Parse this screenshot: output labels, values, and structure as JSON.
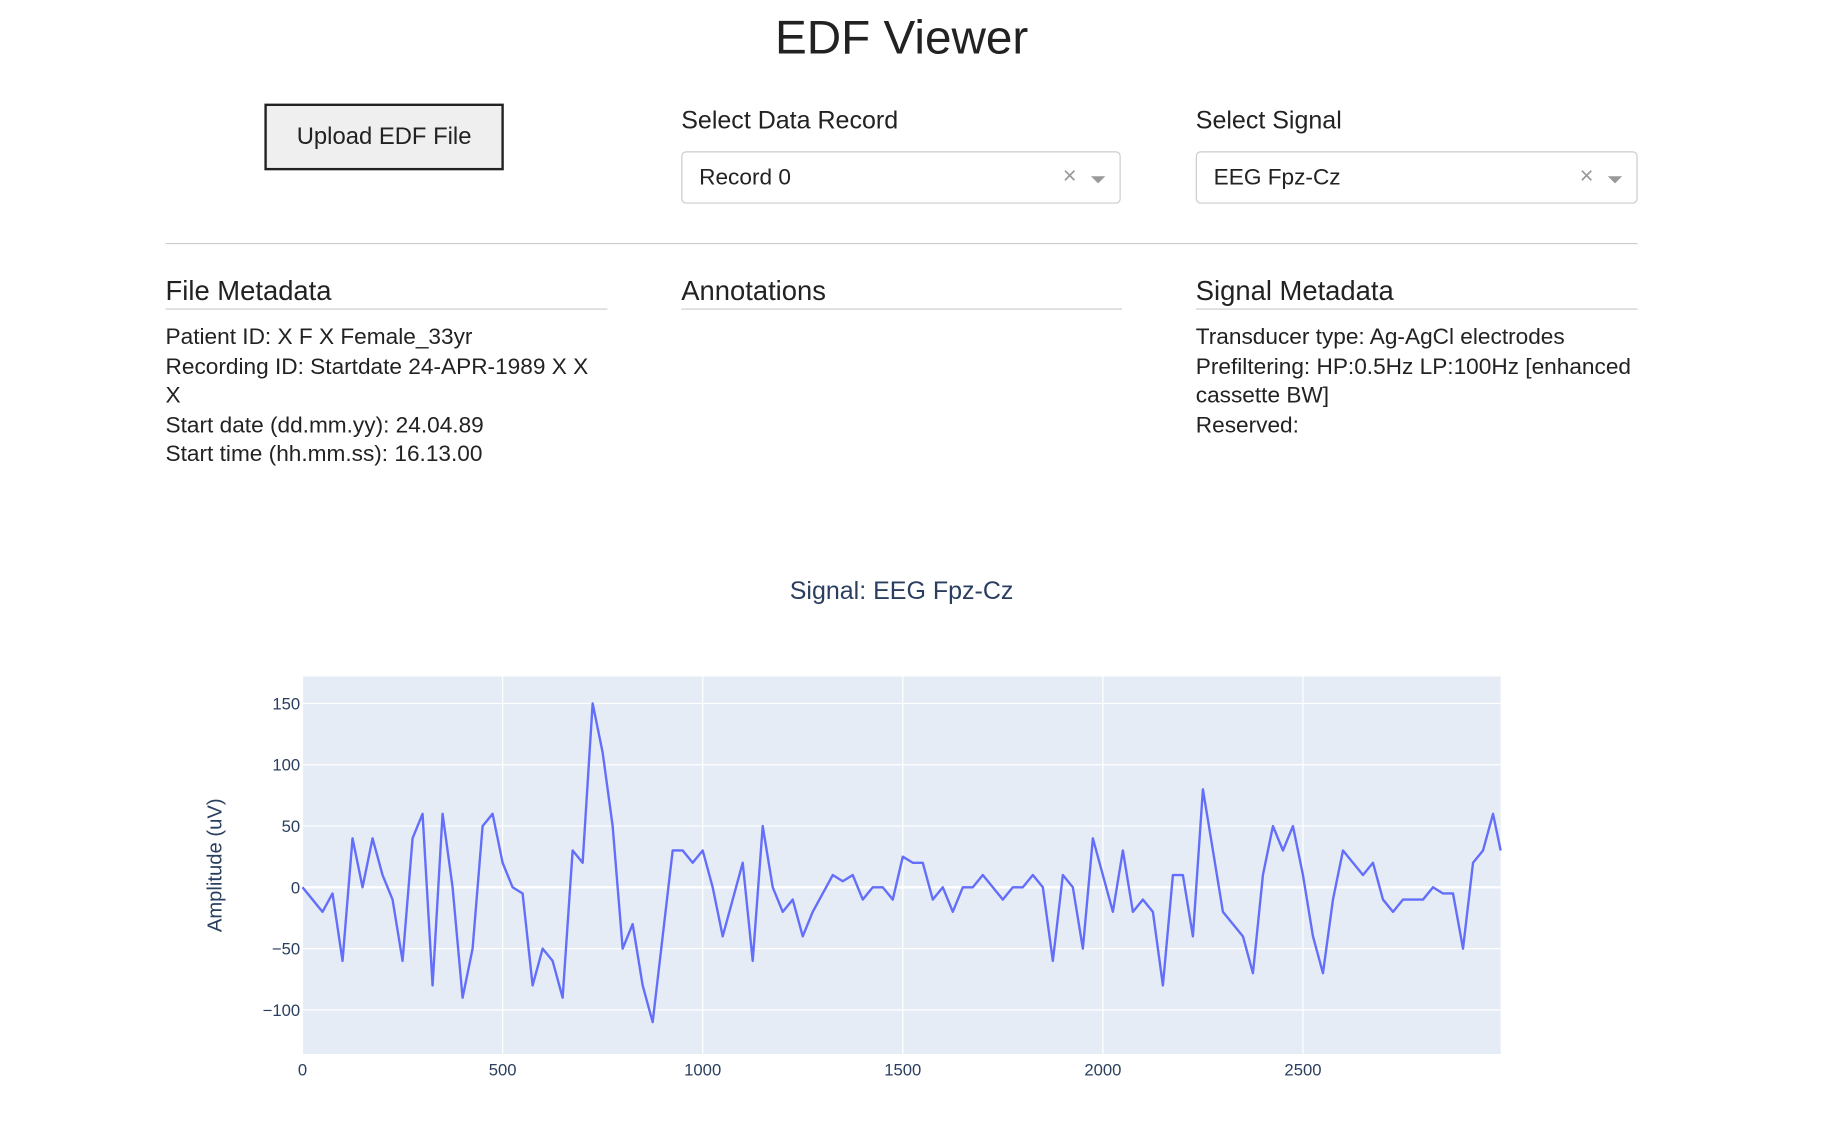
{
  "title": "EDF Viewer",
  "upload_button": "Upload EDF File",
  "record_select": {
    "label": "Select Data Record",
    "value": "Record 0"
  },
  "signal_select": {
    "label": "Select Signal",
    "value": "EEG Fpz-Cz"
  },
  "file_metadata": {
    "title": "File Metadata",
    "lines": [
      "Patient ID: X F X Female_33yr",
      "Recording ID: Startdate 24-APR-1989 X X X",
      "Start date (dd.mm.yy): 24.04.89",
      "Start time (hh.mm.ss): 16.13.00"
    ]
  },
  "annotations": {
    "title": "Annotations"
  },
  "signal_metadata": {
    "title": "Signal Metadata",
    "lines": [
      "Transducer type: Ag-AgCl electrodes",
      "Prefiltering: HP:0.5Hz LP:100Hz [enhanced cassette BW]",
      "Reserved:"
    ]
  },
  "chart_data": {
    "type": "line",
    "title": "Signal: EEG Fpz-Cz",
    "y_label": "Amplitude (uV)",
    "xlim": [
      0,
      2994
    ],
    "ylim": [
      -136,
      172
    ],
    "xticks": [
      0,
      500,
      1000,
      1500,
      2000,
      2500
    ],
    "yticks": [
      {
        "value": -100,
        "label": "−100"
      },
      {
        "value": -50,
        "label": "−50"
      },
      0,
      50,
      100,
      150
    ],
    "grid": true,
    "x": [
      0,
      25,
      50,
      75,
      100,
      125,
      150,
      175,
      200,
      225,
      250,
      275,
      300,
      325,
      350,
      375,
      400,
      425,
      450,
      475,
      500,
      525,
      550,
      575,
      600,
      625,
      650,
      675,
      700,
      725,
      750,
      775,
      800,
      825,
      850,
      875,
      900,
      925,
      950,
      975,
      1000,
      1025,
      1050,
      1075,
      1100,
      1125,
      1150,
      1175,
      1200,
      1225,
      1250,
      1275,
      1300,
      1325,
      1350,
      1375,
      1400,
      1425,
      1450,
      1475,
      1500,
      1525,
      1550,
      1575,
      1600,
      1625,
      1650,
      1675,
      1700,
      1725,
      1750,
      1775,
      1800,
      1825,
      1850,
      1875,
      1900,
      1925,
      1950,
      1975,
      2000,
      2025,
      2050,
      2075,
      2100,
      2125,
      2150,
      2175,
      2200,
      2225,
      2250,
      2275,
      2300,
      2325,
      2350,
      2375,
      2400,
      2425,
      2450,
      2475,
      2500,
      2525,
      2550,
      2575,
      2600,
      2625,
      2650,
      2675,
      2700,
      2725,
      2750,
      2775,
      2800,
      2825,
      2850,
      2875,
      2900,
      2925,
      2950,
      2975,
      2994
    ],
    "series": [
      {
        "color": "#636efa",
        "values": [
          0,
          -10,
          -20,
          -5,
          -60,
          40,
          0,
          40,
          10,
          -10,
          -60,
          40,
          60,
          -80,
          60,
          0,
          -90,
          -50,
          50,
          60,
          20,
          0,
          -5,
          -80,
          -50,
          -60,
          -90,
          30,
          20,
          150,
          110,
          50,
          -50,
          -30,
          -80,
          -110,
          -40,
          30,
          30,
          20,
          30,
          0,
          -40,
          -10,
          20,
          -60,
          50,
          0,
          -20,
          -10,
          -40,
          -20,
          -5,
          10,
          5,
          10,
          -10,
          0,
          0,
          -10,
          25,
          20,
          20,
          -10,
          0,
          -20,
          0,
          0,
          10,
          0,
          -10,
          0,
          0,
          10,
          0,
          -60,
          10,
          0,
          -50,
          40,
          10,
          -20,
          30,
          -20,
          -10,
          -20,
          -80,
          10,
          10,
          -40,
          80,
          30,
          -20,
          -30,
          -40,
          -70,
          10,
          50,
          30,
          50,
          10,
          -40,
          -70,
          -10,
          30,
          20,
          10,
          20,
          -10,
          -20,
          -10,
          -10,
          -10,
          0,
          -5,
          -5,
          -50,
          20,
          30,
          60,
          30
        ]
      }
    ]
  }
}
